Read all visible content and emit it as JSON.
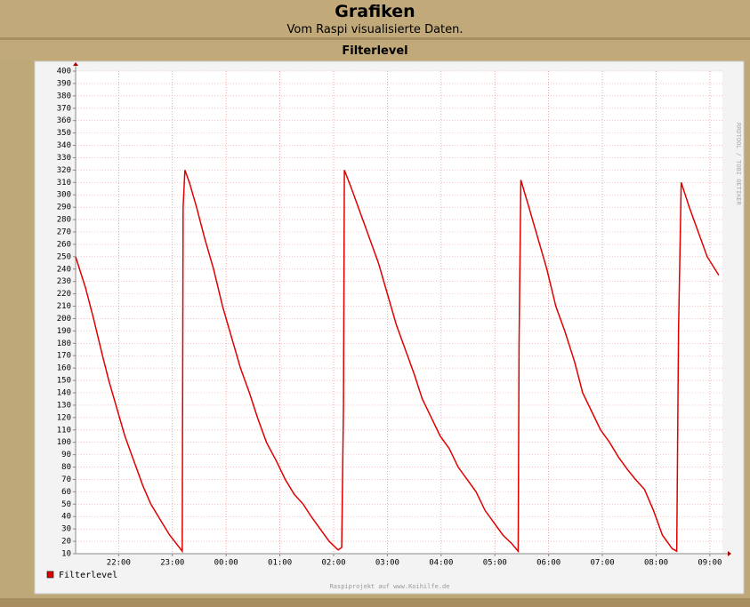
{
  "header": {
    "title": "Grafiken",
    "subtitle": "Vom Raspi visualisierte Daten."
  },
  "chart_data": {
    "type": "line",
    "title": "Filterlevel",
    "side_label": "RRDTOOL / TOBI OETIKER",
    "footer": "Raspiprojekt auf www.Koihilfe.de",
    "x": [
      "21:12",
      "21:23",
      "21:32",
      "21:42",
      "21:49",
      "21:57",
      "22:07",
      "22:17",
      "22:27",
      "22:36",
      "22:46",
      "22:57",
      "23:11",
      "23:12",
      "23:14",
      "23:19",
      "23:27",
      "23:36",
      "23:46",
      "23:56",
      "00:06",
      "00:16",
      "00:26",
      "00:35",
      "00:45",
      "00:56",
      "01:06",
      "01:16",
      "01:26",
      "01:35",
      "01:45",
      "01:55",
      "02:05",
      "02:09",
      "02:11",
      "02:12",
      "02:20",
      "02:30",
      "02:40",
      "02:50",
      "03:00",
      "03:10",
      "03:20",
      "03:30",
      "03:39",
      "03:49",
      "03:59",
      "04:09",
      "04:19",
      "04:29",
      "04:39",
      "04:49",
      "04:59",
      "05:09",
      "05:19",
      "05:26",
      "05:27",
      "05:29",
      "05:38",
      "05:48",
      "05:58",
      "06:08",
      "06:18",
      "06:29",
      "06:38",
      "06:48",
      "06:58",
      "07:08",
      "07:18",
      "07:28",
      "07:37",
      "07:47",
      "07:57",
      "08:07",
      "08:18",
      "08:23",
      "08:25",
      "08:28",
      "08:37",
      "08:47",
      "08:57",
      "09:10"
    ],
    "series": [
      {
        "name": "Filterlevel",
        "color": "#e00000",
        "values": [
          250,
          225,
          200,
          170,
          150,
          130,
          105,
          85,
          65,
          50,
          38,
          25,
          12,
          290,
          320,
          310,
          290,
          265,
          240,
          210,
          185,
          160,
          140,
          120,
          100,
          85,
          70,
          58,
          50,
          40,
          30,
          20,
          13,
          15,
          130,
          320,
          305,
          285,
          265,
          245,
          220,
          195,
          175,
          155,
          135,
          120,
          105,
          95,
          80,
          70,
          60,
          45,
          35,
          25,
          18,
          12,
          180,
          312,
          290,
          265,
          240,
          210,
          190,
          165,
          140,
          125,
          110,
          100,
          88,
          78,
          70,
          62,
          45,
          25,
          14,
          12,
          190,
          310,
          290,
          270,
          250,
          235
        ]
      }
    ],
    "xlim": [
      "21:12",
      "09:14"
    ],
    "xticks": [
      "22:00",
      "23:00",
      "00:00",
      "01:00",
      "02:00",
      "03:00",
      "04:00",
      "05:00",
      "06:00",
      "07:00",
      "08:00",
      "09:00"
    ],
    "ylim": [
      10,
      400
    ],
    "yticks": [
      10,
      20,
      30,
      40,
      50,
      60,
      70,
      80,
      90,
      100,
      110,
      120,
      130,
      140,
      150,
      160,
      170,
      180,
      190,
      200,
      210,
      220,
      230,
      240,
      250,
      260,
      270,
      280,
      290,
      300,
      310,
      320,
      330,
      340,
      350,
      360,
      370,
      380,
      390,
      400
    ],
    "grid": true
  }
}
